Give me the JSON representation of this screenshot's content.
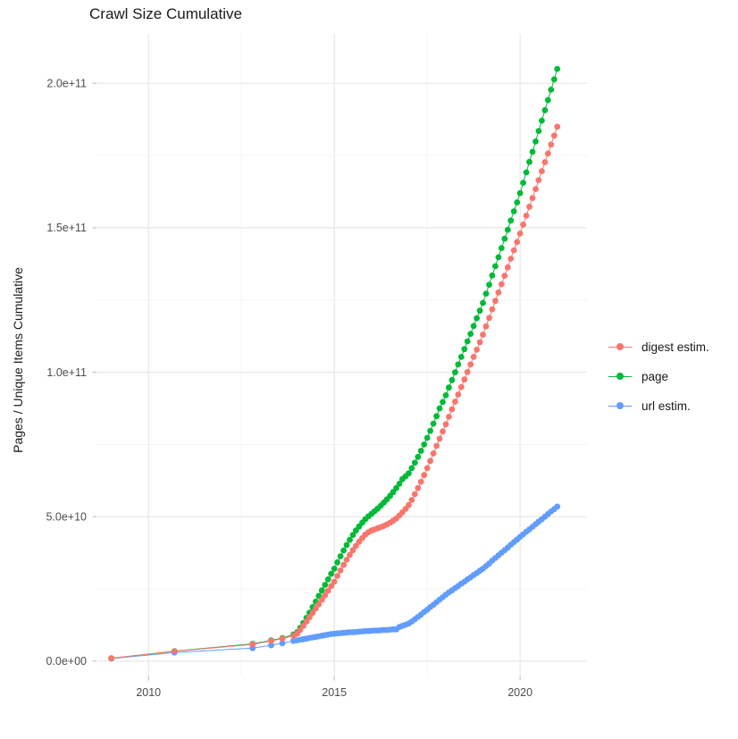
{
  "title": "Crawl Size Cumulative",
  "y_axis_title": "Pages / Unique Items Cumulative",
  "plot_style": {
    "background": "#ffffff",
    "grid_major_color": "#e9e9e9",
    "grid_minor_color": "#f3f3f3",
    "tick_mark_color": "#c4c4c4",
    "tick_label_color": "#4d4d4d"
  },
  "chart_data": {
    "type": "line",
    "title": "Crawl Size Cumulative",
    "xlabel": "",
    "ylabel": "Pages / Unique Items Cumulative",
    "legend_position": "right",
    "grid": true,
    "values_unit": "1e9 (billions of items); y tick labels shown in scientific notation",
    "x_ticks": {
      "values": [
        2010,
        2015,
        2020
      ],
      "labels": [
        "2010",
        "2015",
        "2020"
      ],
      "minor": [
        2012.5,
        2017.5
      ]
    },
    "y_ticks": {
      "values": [
        0,
        50,
        100,
        150,
        200
      ],
      "labels": [
        "0.0e+00",
        "5.0e+10",
        "1.0e+11",
        "1.5e+11",
        "2.0e+11"
      ],
      "minor": [
        25,
        75,
        125,
        175
      ]
    },
    "xlim": [
      2008.6,
      2021.8
    ],
    "ylim_billions": [
      -5.3,
      217.1
    ],
    "x": [
      2009.0,
      2010.7,
      2012.8,
      2013.3,
      2013.6,
      2013.9,
      2014.0,
      2014.083,
      2014.167,
      2014.25,
      2014.333,
      2014.417,
      2014.5,
      2014.583,
      2014.667,
      2014.75,
      2014.833,
      2014.917,
      2015.0,
      2015.083,
      2015.167,
      2015.25,
      2015.333,
      2015.417,
      2015.5,
      2015.583,
      2015.667,
      2015.75,
      2015.833,
      2015.917,
      2016.0,
      2016.083,
      2016.167,
      2016.25,
      2016.333,
      2016.417,
      2016.5,
      2016.583,
      2016.667,
      2016.75,
      2016.833,
      2016.917,
      2017.0,
      2017.083,
      2017.167,
      2017.25,
      2017.333,
      2017.417,
      2017.5,
      2017.583,
      2017.667,
      2017.75,
      2017.833,
      2017.917,
      2018.0,
      2018.083,
      2018.167,
      2018.25,
      2018.333,
      2018.417,
      2018.5,
      2018.583,
      2018.667,
      2018.75,
      2018.833,
      2018.917,
      2019.0,
      2019.083,
      2019.167,
      2019.25,
      2019.333,
      2019.417,
      2019.5,
      2019.583,
      2019.667,
      2019.75,
      2019.833,
      2019.917,
      2020.0,
      2020.083,
      2020.167,
      2020.25,
      2020.333,
      2020.417,
      2020.5,
      2020.583,
      2020.667,
      2020.75,
      2020.833,
      2020.917,
      2021.0
    ],
    "series": [
      {
        "name": "digest estim.",
        "color": "#F8766D",
        "values_billions": [
          1.0,
          3.4,
          5.8,
          7.0,
          7.8,
          8.8,
          9.5,
          10.8,
          12.2,
          13.7,
          15.2,
          16.7,
          18.2,
          19.7,
          21.3,
          22.8,
          24.4,
          26.0,
          27.5,
          29.5,
          31.4,
          33.3,
          35.1,
          36.8,
          38.4,
          39.9,
          41.3,
          42.6,
          43.8,
          44.6,
          45.2,
          45.6,
          46.0,
          46.4,
          46.8,
          47.3,
          47.9,
          48.6,
          49.4,
          50.4,
          51.5,
          52.7,
          54.0,
          55.8,
          57.8,
          59.9,
          62.1,
          64.4,
          66.8,
          69.3,
          71.9,
          74.5,
          77.0,
          79.5,
          82.0,
          84.6,
          87.2,
          89.8,
          92.3,
          94.9,
          97.5,
          100.1,
          102.7,
          105.3,
          107.8,
          110.4,
          113.0,
          115.9,
          118.8,
          121.8,
          124.7,
          127.6,
          130.5,
          133.4,
          136.3,
          139.3,
          142.2,
          145.1,
          148.0,
          151.1,
          154.2,
          157.3,
          160.3,
          163.4,
          166.5,
          169.6,
          172.7,
          175.7,
          178.8,
          181.9,
          185.0
        ]
      },
      {
        "name": "page",
        "color": "#00BA38",
        "values_billions": [
          1.0,
          3.5,
          6.0,
          7.2,
          8.0,
          9.2,
          10.0,
          11.5,
          13.2,
          15.0,
          16.8,
          18.7,
          20.6,
          22.6,
          24.5,
          26.4,
          28.3,
          30.2,
          32.0,
          34.2,
          36.3,
          38.3,
          40.2,
          42.0,
          43.7,
          45.2,
          46.6,
          47.9,
          49.1,
          50.1,
          51.0,
          51.9,
          52.8,
          53.8,
          54.9,
          56.0,
          57.2,
          58.5,
          59.9,
          61.4,
          63.0,
          64.0,
          65.0,
          66.8,
          68.7,
          70.7,
          72.8,
          75.0,
          77.3,
          79.7,
          82.2,
          84.8,
          87.5,
          89.7,
          92.0,
          94.7,
          97.3,
          100.0,
          102.7,
          105.3,
          108.0,
          110.7,
          113.3,
          116.0,
          118.7,
          121.3,
          124.0,
          127.2,
          130.3,
          133.5,
          136.7,
          139.8,
          143.0,
          146.2,
          149.3,
          152.5,
          155.7,
          158.8,
          162.0,
          165.6,
          169.2,
          172.8,
          176.3,
          179.9,
          183.5,
          187.1,
          190.7,
          194.2,
          197.8,
          201.4,
          205.0
        ]
      },
      {
        "name": "url estim.",
        "color": "#619CFF",
        "values_billions": [
          0.9,
          3.0,
          4.5,
          5.5,
          6.2,
          7.0,
          7.2,
          7.4,
          7.6,
          7.8,
          8.0,
          8.2,
          8.4,
          8.6,
          8.8,
          9.0,
          9.2,
          9.4,
          9.5,
          9.6,
          9.7,
          9.8,
          9.9,
          10.0,
          10.0,
          10.1,
          10.2,
          10.3,
          10.4,
          10.4,
          10.5,
          10.6,
          10.6,
          10.7,
          10.8,
          10.8,
          10.9,
          11.0,
          11.0,
          11.8,
          12.2,
          12.6,
          13.0,
          13.7,
          14.5,
          15.3,
          16.1,
          17.0,
          17.8,
          18.7,
          19.5,
          20.4,
          21.3,
          22.1,
          23.0,
          23.8,
          24.5,
          25.3,
          26.0,
          26.8,
          27.5,
          28.3,
          29.0,
          29.8,
          30.5,
          31.3,
          32.0,
          32.9,
          33.8,
          34.8,
          35.7,
          36.6,
          37.5,
          38.4,
          39.3,
          40.3,
          41.2,
          42.1,
          43.0,
          43.9,
          44.8,
          45.6,
          46.5,
          47.4,
          48.3,
          49.1,
          50.0,
          50.9,
          51.8,
          52.6,
          53.5
        ]
      }
    ]
  }
}
